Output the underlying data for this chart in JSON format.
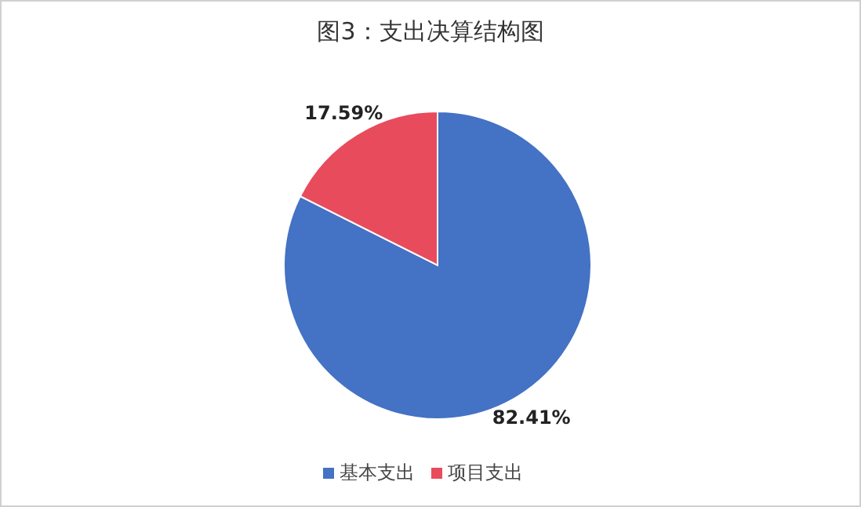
{
  "chart_data": {
    "type": "pie",
    "title": "图3：支出决算结构图",
    "categories": [
      "基本支出",
      "项目支出"
    ],
    "values": [
      82.41,
      17.59
    ],
    "value_labels": [
      "82.41%",
      "17.59%"
    ],
    "colors": [
      "#4472c4",
      "#e84c5c"
    ],
    "legend": "bottom"
  }
}
